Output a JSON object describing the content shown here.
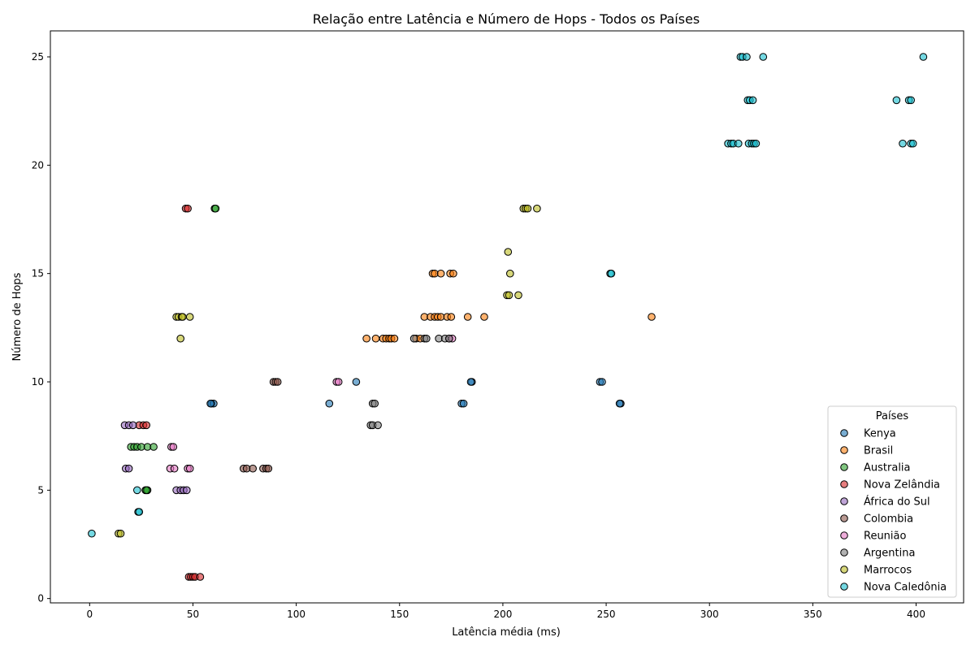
{
  "chart_data": {
    "type": "scatter",
    "title": "Relação entre Latência e Número de Hops - Todos os Países",
    "xlabel": "Latência média (ms)",
    "ylabel": "Número de Hops",
    "xlim": [
      -19,
      423
    ],
    "ylim": [
      -0.2,
      26.2
    ],
    "xticks": [
      0,
      50,
      100,
      150,
      200,
      250,
      300,
      350,
      400
    ],
    "yticks": [
      0,
      5,
      10,
      15,
      20,
      25
    ],
    "grid": false,
    "legend": {
      "title": "Países",
      "position": "bottom-right"
    },
    "series": [
      {
        "name": "Kenya",
        "color": "#1f77b4",
        "points": [
          [
            59,
            9
          ],
          [
            60,
            9
          ],
          [
            58.5,
            9
          ],
          [
            116,
            9
          ],
          [
            129,
            10
          ],
          [
            180,
            9
          ],
          [
            181,
            9
          ],
          [
            185,
            10
          ],
          [
            184.5,
            10
          ],
          [
            247,
            10
          ],
          [
            248,
            10
          ],
          [
            257,
            9
          ],
          [
            256.5,
            9
          ]
        ]
      },
      {
        "name": "Brasil",
        "color": "#ff7f0e",
        "points": [
          [
            134,
            12
          ],
          [
            138.5,
            12
          ],
          [
            142,
            12
          ],
          [
            143.5,
            12
          ],
          [
            145,
            12
          ],
          [
            146,
            12
          ],
          [
            147.5,
            12
          ],
          [
            158,
            12
          ],
          [
            160,
            12
          ],
          [
            162,
            13
          ],
          [
            165,
            13
          ],
          [
            166,
            15
          ],
          [
            167,
            13
          ],
          [
            167,
            15
          ],
          [
            168.5,
            13
          ],
          [
            170,
            13
          ],
          [
            170,
            15
          ],
          [
            173,
            13
          ],
          [
            175,
            13
          ],
          [
            174.5,
            15
          ],
          [
            176,
            15
          ],
          [
            183,
            13
          ],
          [
            191,
            13
          ],
          [
            272,
            13
          ]
        ]
      },
      {
        "name": "Australia",
        "color": "#2ca02c",
        "points": [
          [
            20,
            7
          ],
          [
            21.5,
            7
          ],
          [
            23,
            7
          ],
          [
            25,
            7
          ],
          [
            28,
            7
          ],
          [
            31,
            7
          ],
          [
            27,
            5
          ],
          [
            28,
            5
          ],
          [
            27.5,
            5
          ],
          [
            60.5,
            18
          ],
          [
            61,
            18
          ]
        ]
      },
      {
        "name": "Nova Zelândia",
        "color": "#d62728",
        "points": [
          [
            24,
            8
          ],
          [
            26,
            8
          ],
          [
            27.5,
            8
          ],
          [
            46.5,
            18
          ],
          [
            47.5,
            18
          ],
          [
            48,
            1
          ],
          [
            49,
            1
          ],
          [
            50,
            1
          ],
          [
            51,
            1
          ],
          [
            53.5,
            1
          ]
        ]
      },
      {
        "name": "África do Sul",
        "color": "#9467bd",
        "points": [
          [
            17,
            8
          ],
          [
            19,
            8
          ],
          [
            21,
            8
          ],
          [
            17.5,
            6
          ],
          [
            19,
            6
          ],
          [
            42,
            5
          ],
          [
            44,
            5
          ],
          [
            45.5,
            5
          ],
          [
            47,
            5
          ]
        ]
      },
      {
        "name": "Colombia",
        "color": "#8c564b",
        "points": [
          [
            74.5,
            6
          ],
          [
            76,
            6
          ],
          [
            79,
            6
          ],
          [
            84,
            6
          ],
          [
            85.5,
            6
          ],
          [
            86.5,
            6
          ],
          [
            89,
            10
          ],
          [
            90,
            10
          ],
          [
            91,
            10
          ]
        ]
      },
      {
        "name": "Reunião",
        "color": "#e377c2",
        "points": [
          [
            39.5,
            7
          ],
          [
            40.5,
            7
          ],
          [
            39,
            6
          ],
          [
            41,
            6
          ],
          [
            47.5,
            6
          ],
          [
            48.5,
            6
          ],
          [
            119.5,
            10
          ],
          [
            120.5,
            10
          ],
          [
            174,
            12
          ],
          [
            175.5,
            12
          ]
        ]
      },
      {
        "name": "Argentina",
        "color": "#7f7f7f",
        "points": [
          [
            136,
            8
          ],
          [
            137,
            8
          ],
          [
            139.5,
            8
          ],
          [
            137,
            9
          ],
          [
            138,
            9
          ],
          [
            157,
            12
          ],
          [
            162,
            12
          ],
          [
            163,
            12
          ],
          [
            169,
            12
          ],
          [
            172,
            12
          ],
          [
            174,
            12
          ]
        ]
      },
      {
        "name": "Marrocos",
        "color": "#bcbd22",
        "points": [
          [
            14,
            3
          ],
          [
            15,
            3
          ],
          [
            42,
            13
          ],
          [
            43,
            13
          ],
          [
            44.5,
            13
          ],
          [
            45,
            13
          ],
          [
            48.5,
            13
          ],
          [
            44,
            12
          ],
          [
            202,
            14
          ],
          [
            203,
            14
          ],
          [
            207.5,
            14
          ],
          [
            202.5,
            16
          ],
          [
            203.5,
            15
          ],
          [
            210,
            18
          ],
          [
            211,
            18
          ],
          [
            212,
            18
          ],
          [
            216.5,
            18
          ]
        ]
      },
      {
        "name": "Nova Caledônia",
        "color": "#17becf",
        "points": [
          [
            1,
            3
          ],
          [
            23,
            5
          ],
          [
            23.5,
            4
          ],
          [
            24,
            4
          ],
          [
            252,
            15
          ],
          [
            252.5,
            15
          ],
          [
            309,
            21
          ],
          [
            310.5,
            21
          ],
          [
            311.5,
            21
          ],
          [
            314,
            21
          ],
          [
            319,
            21
          ],
          [
            320.5,
            21
          ],
          [
            321.5,
            21
          ],
          [
            322.5,
            21
          ],
          [
            315,
            25
          ],
          [
            316,
            25
          ],
          [
            318,
            25
          ],
          [
            326,
            25
          ],
          [
            318.5,
            23
          ],
          [
            319.5,
            23
          ],
          [
            321,
            23
          ],
          [
            390.5,
            23
          ],
          [
            396.5,
            23
          ],
          [
            397.5,
            23
          ],
          [
            393.5,
            21
          ],
          [
            397.5,
            21
          ],
          [
            398.5,
            21
          ],
          [
            403.5,
            25
          ]
        ]
      }
    ]
  }
}
